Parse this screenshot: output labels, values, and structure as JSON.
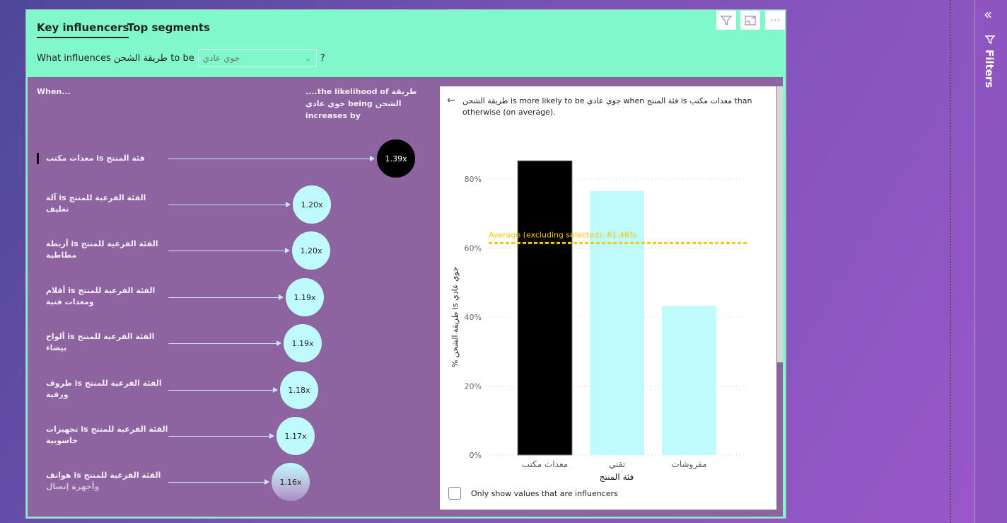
{
  "tabs": [
    "Key influencers",
    "Top segments"
  ],
  "question": {
    "prefix": "What influences طريقة الشحن to be",
    "selected": "جوي عادي",
    "suffix": "?"
  },
  "header_icons": [
    "filter-icon",
    "focus-mode-icon",
    "more-options-icon"
  ],
  "left_header": {
    "when": "When...",
    "likelihood": [
      "....the likelihood of طريقة",
      "جوي عادي being الشحن",
      "increases by"
    ]
  },
  "influencers": [
    {
      "line1": "معدات مكتب is فئة المنتج",
      "line2": "",
      "value": "1.39x",
      "selected": true
    },
    {
      "line1": "آلة is الفئة الفرعية للمنتج",
      "line2": "تغليف",
      "value": "1.20x"
    },
    {
      "line1": "أربطة is الفئة الفرعية للمنتج",
      "line2": "مطاطية",
      "value": "1.20x"
    },
    {
      "line1": "أقلام is الفئة الفرعية للمنتج",
      "line2": "ومعدات فنية",
      "value": "1.19x"
    },
    {
      "line1": "ألواح is الفئة الفرعية للمنتج",
      "line2": "بيضاء",
      "value": "1.19x"
    },
    {
      "line1": "ظروف is الفئة الفرعية للمنتج",
      "line2": "ورقية",
      "value": "1.18x"
    },
    {
      "line1": "تجهيزات is الفئة الفرعية للمنتج",
      "line2": "حاسوبية",
      "value": "1.17x"
    },
    {
      "line1": "هواتف is الفئة الفرعية للمنتج",
      "line2": "وأجهزة إتصال",
      "value": "1.16x"
    }
  ],
  "detail": {
    "description": "طريقة الشحن is more likely to be جوي عادي when فئة المنتج is معدات مكتب than otherwise (on average).",
    "checkbox_label": "Only show values that are influencers"
  },
  "chart_data": {
    "type": "bar",
    "categories": [
      "معدات مكتب",
      "تقني",
      "مفروشات"
    ],
    "values": [
      85.3,
      76.5,
      43.3
    ],
    "bar_colors": [
      "#000000",
      "#bffbfd",
      "#bffbfd"
    ],
    "xlabel": "فئة المنتج",
    "ylabel": "% طريقة الشحن is جوي عادي",
    "ylim": [
      0,
      90
    ],
    "yticks": [
      0,
      20,
      40,
      60,
      80
    ],
    "ytick_labels": [
      "0%",
      "20%",
      "40%",
      "60%",
      "80%"
    ],
    "average": {
      "value": 61.46,
      "label": "Average (excluding selected): 61.46%",
      "color": "#f2c811"
    },
    "grid": true
  },
  "filters_pane": {
    "label": "Filters"
  }
}
